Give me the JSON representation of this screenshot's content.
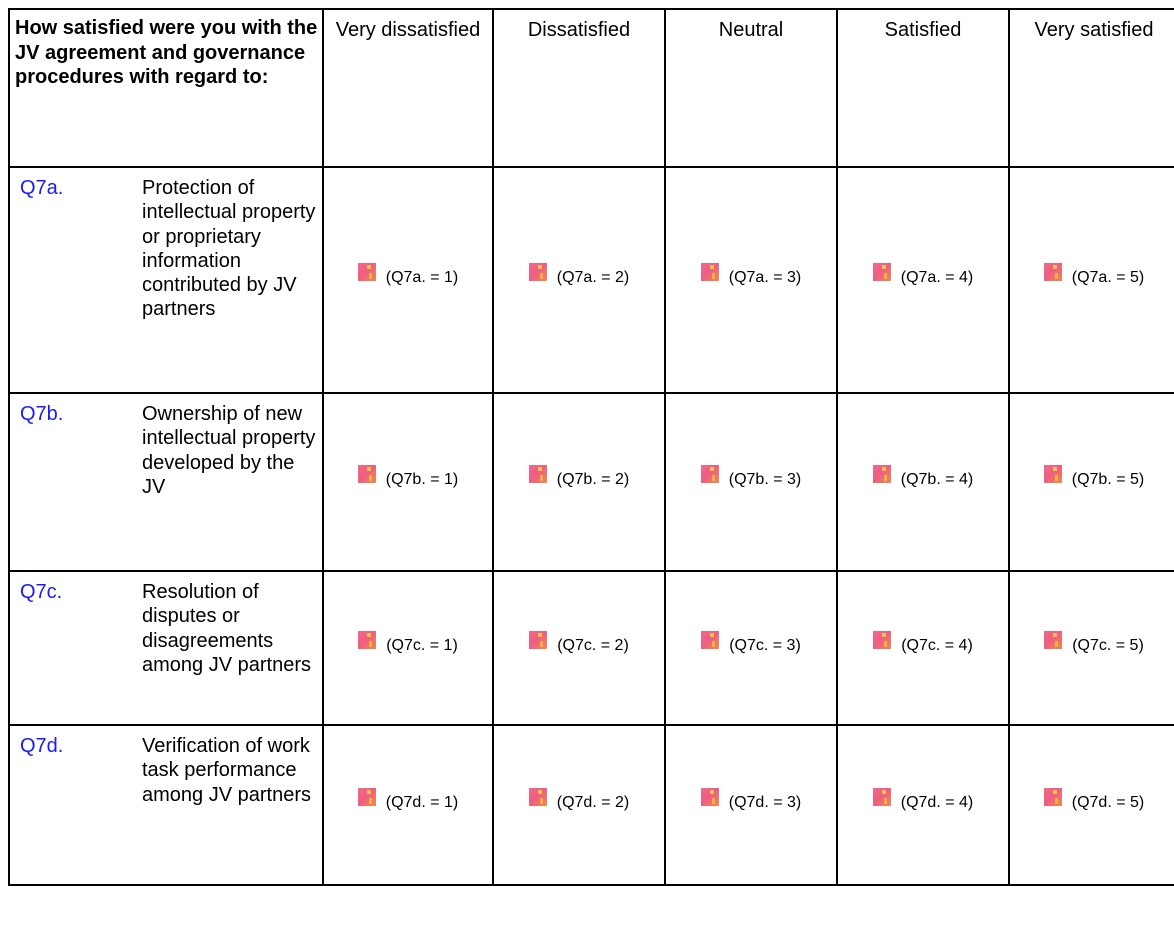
{
  "header": {
    "question": "How satisfied were you with the JV agreement and governance procedures with regard to:",
    "options": [
      "Very dissatisfied",
      "Dissatisfied",
      "Neutral",
      "Satisfied",
      "Very satisfied"
    ]
  },
  "rows": [
    {
      "id": "Q7a.",
      "text": "Protection of intellectual property or proprietary information contributed by JV partners",
      "choices": [
        "(Q7a. = 1)",
        "(Q7a. = 2)",
        "(Q7a. = 3)",
        "(Q7a. = 4)",
        "(Q7a. = 5)"
      ]
    },
    {
      "id": "Q7b.",
      "text": "Ownership of new intellectual property developed by the JV",
      "choices": [
        "(Q7b. = 1)",
        "(Q7b. = 2)",
        "(Q7b. = 3)",
        "(Q7b. = 4)",
        "(Q7b. = 5)"
      ]
    },
    {
      "id": "Q7c.",
      "text": "Resolution of disputes or disagreements among JV partners",
      "choices": [
        "(Q7c. = 1)",
        "(Q7c. = 2)",
        "(Q7c. = 3)",
        "(Q7c. = 4)",
        "(Q7c. = 5)"
      ]
    },
    {
      "id": "Q7d.",
      "text": "Verification of work task performance among JV partners",
      "choices": [
        "(Q7d. = 1)",
        "(Q7d. = 2)",
        "(Q7d. = 3)",
        "(Q7d. = 4)",
        "(Q7d. = 5)"
      ]
    }
  ],
  "colors": {
    "question_id": "#1a1aff",
    "border": "#000000",
    "radio_image": "#ee5d82"
  },
  "icons": {
    "radio": "radio-button-image-icon"
  }
}
